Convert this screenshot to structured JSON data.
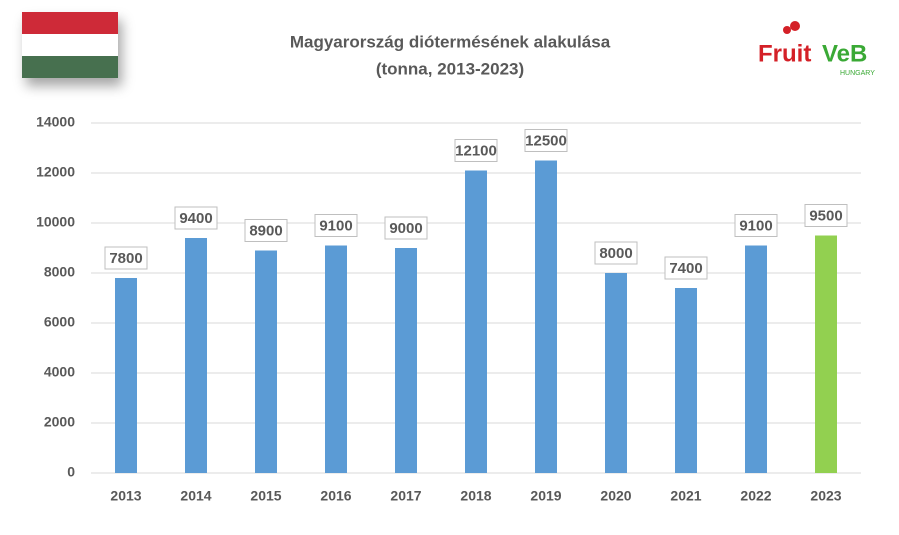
{
  "chart_data": {
    "type": "bar",
    "title": "Magyarország diótermésének alakulása",
    "subtitle": "(tonna, 2013-2023)",
    "logo": [
      "Fruit",
      "VeB",
      "HUNGARY"
    ],
    "categories": [
      "2013",
      "2014",
      "2015",
      "2016",
      "2017",
      "2018",
      "2019",
      "2020",
      "2021",
      "2022",
      "2023"
    ],
    "values": [
      7800,
      9400,
      8900,
      9100,
      9000,
      12100,
      12500,
      8000,
      7400,
      9100,
      9500
    ],
    "colors": [
      "#5b9bd5",
      "#5b9bd5",
      "#5b9bd5",
      "#5b9bd5",
      "#5b9bd5",
      "#5b9bd5",
      "#5b9bd5",
      "#5b9bd5",
      "#5b9bd5",
      "#5b9bd5",
      "#92d050"
    ],
    "ylim": [
      0,
      14000
    ],
    "yticks": [
      0,
      2000,
      4000,
      6000,
      8000,
      10000,
      12000,
      14000
    ],
    "grid": true
  }
}
